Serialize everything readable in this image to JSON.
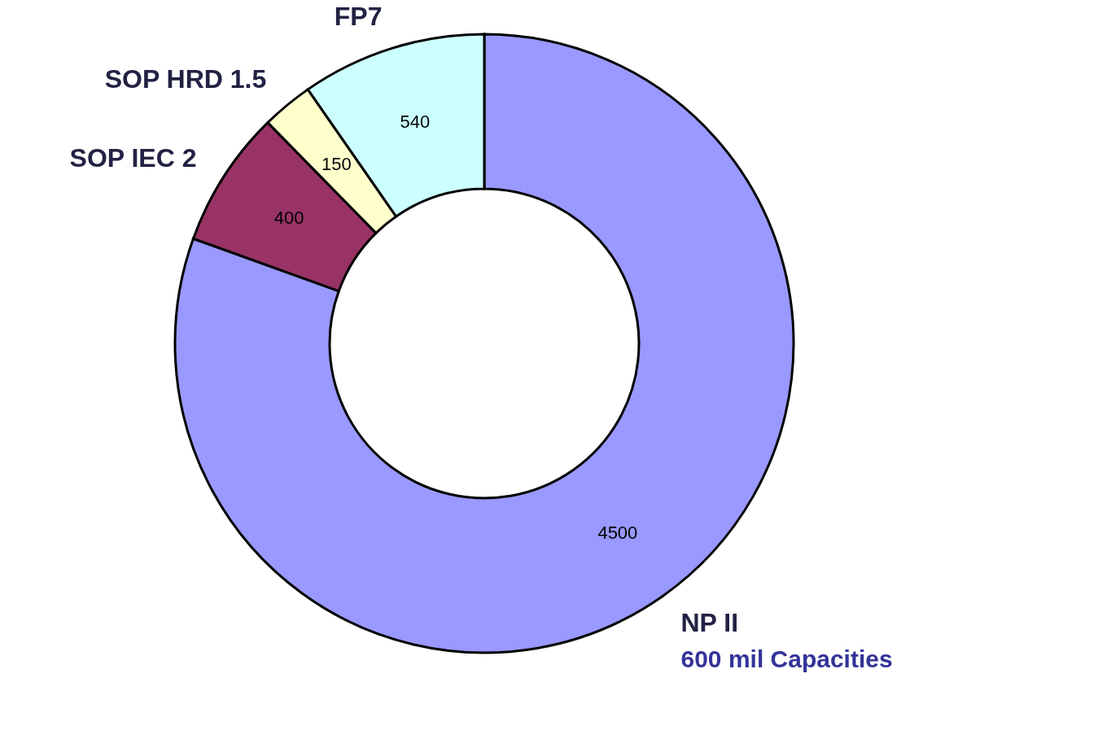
{
  "chart_data": {
    "type": "donut",
    "categories": [
      "NP II",
      "SOP IEC 2",
      "SOP HRD 1.5",
      "FP7"
    ],
    "values": [
      4500,
      400,
      150,
      540
    ],
    "colors": [
      "#9999ff",
      "#993366",
      "#ffffcc",
      "#ccffff"
    ],
    "data_labels": true,
    "annotations": [
      "600 mil Capacities"
    ]
  }
}
